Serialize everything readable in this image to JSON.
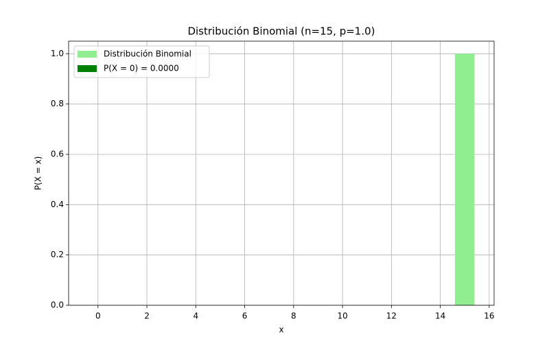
{
  "chart_data": {
    "type": "bar",
    "title": "Distribución Binomial (n=15, p=1.0)",
    "xlabel": "x",
    "ylabel": "P(X = x)",
    "series": [
      {
        "name": "Distribución Binomial",
        "color": "#90ee90",
        "x": [
          0,
          1,
          2,
          3,
          4,
          5,
          6,
          7,
          8,
          9,
          10,
          11,
          12,
          13,
          14,
          15
        ],
        "values": [
          0,
          0,
          0,
          0,
          0,
          0,
          0,
          0,
          0,
          0,
          0,
          0,
          0,
          0,
          0,
          1.0
        ]
      },
      {
        "name": "P(X = 0) = 0.0000",
        "color": "#008000",
        "x": [
          0
        ],
        "values": [
          0
        ]
      }
    ],
    "xlim": [
      -1.2,
      16.2
    ],
    "xticks": [
      0,
      2,
      4,
      6,
      8,
      10,
      12,
      14,
      16
    ],
    "ylim": [
      0,
      1.05
    ],
    "yticks": [
      {
        "value": 0,
        "label": "0.0"
      },
      0.2,
      0.4,
      0.6,
      0.8,
      {
        "value": 1.0,
        "label": "1.0"
      }
    ],
    "grid": true,
    "legend": "upper left"
  }
}
